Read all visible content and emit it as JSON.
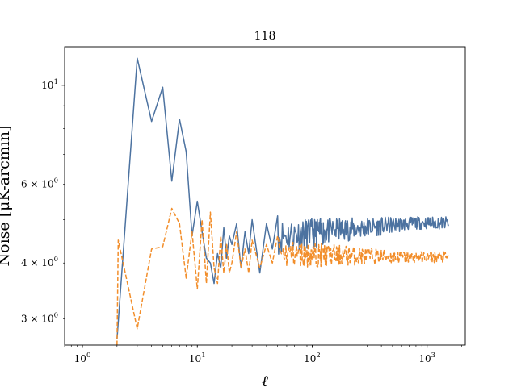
{
  "chart_data": {
    "type": "line",
    "title": "118",
    "xlabel": "ℓ",
    "ylabel": "Noise [μK-arcmin]",
    "xscale": "log",
    "yscale": "log",
    "xlim": [
      0.7,
      2150
    ],
    "ylim": [
      2.62,
      12.2
    ],
    "grid": false,
    "x_tick_labels": [
      {
        "value": 1,
        "base": "10",
        "exp": "0"
      },
      {
        "value": 10,
        "base": "10",
        "exp": "1"
      },
      {
        "value": 100,
        "base": "10",
        "exp": "2"
      },
      {
        "value": 1000,
        "base": "10",
        "exp": "3"
      }
    ],
    "y_tick_labels": [
      {
        "value": 10,
        "base": "10",
        "exp": "1",
        "coef": ""
      },
      {
        "value": 6,
        "base": "10",
        "exp": "0",
        "coef": "6 × "
      },
      {
        "value": 4,
        "base": "10",
        "exp": "0",
        "coef": "4 × "
      },
      {
        "value": 3,
        "base": "10",
        "exp": "0",
        "coef": "3 × "
      }
    ],
    "series": [
      {
        "style": "solid",
        "color": "#4c72a0",
        "x": [
          2,
          3,
          4,
          5,
          6,
          7,
          8,
          9,
          10,
          11,
          12,
          13,
          14,
          15,
          16,
          17,
          18,
          19,
          20,
          22,
          24,
          26,
          28,
          30,
          35,
          40,
          45,
          50
        ],
        "y": [
          2.7,
          11.5,
          8.3,
          9.9,
          6.1,
          8.4,
          7.1,
          4.6,
          5.5,
          4.7,
          4.1,
          4.0,
          3.6,
          4.2,
          3.9,
          4.8,
          4.1,
          4.6,
          4.4,
          4.9,
          3.9,
          4.7,
          4.2,
          5.0,
          3.8,
          4.9,
          4.3,
          5.1
        ],
        "noise_from": 50,
        "noise_to": 1550,
        "noise_start": 4.6,
        "noise_mean": 4.92,
        "noise_amp": 0.16
      },
      {
        "style": "dashed",
        "color": "#f28e2b",
        "x": [
          2,
          2.05,
          3,
          4,
          5,
          6,
          7,
          8,
          9,
          10,
          11,
          12,
          13,
          14,
          15,
          16,
          17,
          18,
          19,
          20,
          22,
          24,
          26,
          28,
          30,
          35,
          40,
          45,
          50
        ],
        "y": [
          2.62,
          4.5,
          2.85,
          4.3,
          4.35,
          5.3,
          4.9,
          3.7,
          4.7,
          3.5,
          5.0,
          3.6,
          5.2,
          3.9,
          3.6,
          4.6,
          3.8,
          4.4,
          3.8,
          4.0,
          4.7,
          3.9,
          4.3,
          3.8,
          4.5,
          3.9,
          4.4,
          4.0,
          4.6
        ],
        "noise_from": 50,
        "noise_to": 1550,
        "noise_start": 4.2,
        "noise_mean": 4.12,
        "noise_amp": 0.12
      }
    ]
  }
}
